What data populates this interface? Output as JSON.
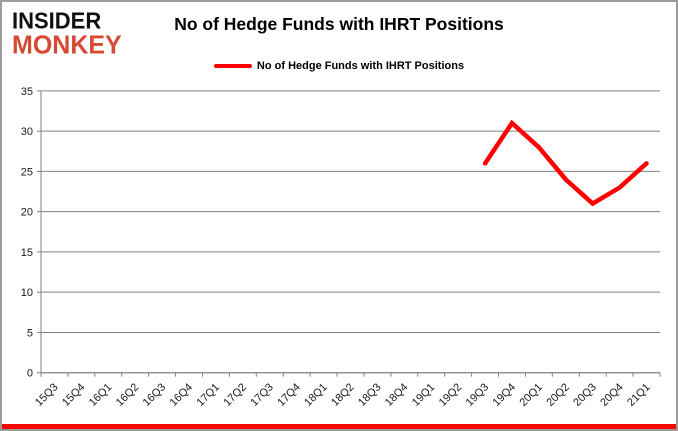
{
  "branding": {
    "line1": "INSIDER",
    "line2": "MONKEY",
    "line1_color": "#111111",
    "line2_color": "#d64a33"
  },
  "title": "No of Hedge Funds with IHRT Positions",
  "legend": {
    "label": "No of Hedge Funds with IHRT Positions",
    "color": "#ff0000"
  },
  "colors": {
    "series": "#ff0000",
    "grid": "#808080",
    "axis": "#808080",
    "text": "#1a1a1a",
    "bottom_bar": "#ff0000",
    "frame_border": "#9b9b9b"
  },
  "chart_data": {
    "type": "line",
    "title": "No of Hedge Funds with IHRT Positions",
    "categories": [
      "15Q3",
      "15Q4",
      "16Q1",
      "16Q2",
      "16Q3",
      "16Q4",
      "17Q1",
      "17Q2",
      "17Q3",
      "17Q4",
      "18Q1",
      "18Q2",
      "18Q3",
      "18Q4",
      "19Q1",
      "19Q2",
      "19Q3",
      "19Q4",
      "20Q1",
      "20Q2",
      "20Q3",
      "20Q4",
      "21Q1"
    ],
    "series": [
      {
        "name": "No of Hedge Funds with IHRT Positions",
        "color": "#ff0000",
        "values": [
          null,
          null,
          null,
          null,
          null,
          null,
          null,
          null,
          null,
          null,
          null,
          null,
          null,
          null,
          null,
          null,
          26,
          31,
          28,
          24,
          21,
          23,
          26
        ]
      }
    ],
    "xlabel": "",
    "ylabel": "",
    "ylim": [
      0,
      35
    ],
    "ytick_step": 5,
    "grid": "horizontal",
    "legend_position": "top-center",
    "x_label_rotation": -45
  }
}
